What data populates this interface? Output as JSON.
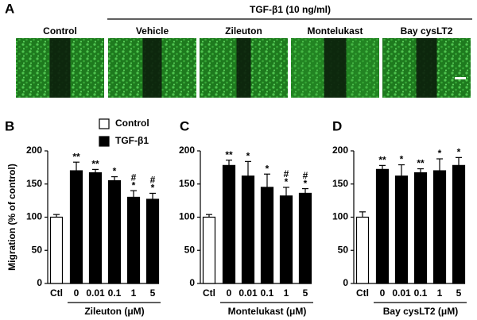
{
  "panel_a": {
    "panel": "A",
    "treatment": "TGF-β1 (10 ng/ml)",
    "images": [
      "Control",
      "Vehicle",
      "Zileuton",
      "Montelukast",
      "Bay cysLT2"
    ]
  },
  "chart_data": [
    {
      "type": "bar",
      "panel": "B",
      "ylabel": "Migration (% of control)",
      "categories": [
        "Ctl",
        "0",
        "0.01",
        "0.1",
        "1",
        "5"
      ],
      "xlabel": "Zileuton (μM)",
      "values": [
        100,
        170,
        167,
        155,
        130,
        127
      ],
      "errors": [
        4,
        13,
        5,
        6,
        10,
        9
      ],
      "colors": [
        "#ffffff",
        "#000000",
        "#000000",
        "#000000",
        "#000000",
        "#000000"
      ],
      "annotations": [
        null,
        [
          "**"
        ],
        [
          "**"
        ],
        [
          "*"
        ],
        [
          "#",
          "*"
        ],
        [
          "#",
          "*"
        ]
      ],
      "legend": [
        {
          "name": "Control",
          "color": "#ffffff"
        },
        {
          "name": "TGF-β1",
          "color": "#000000"
        }
      ],
      "ylim": [
        0,
        200
      ],
      "yticks": [
        0,
        50,
        100,
        150,
        200
      ]
    },
    {
      "type": "bar",
      "panel": "C",
      "categories": [
        "Ctl",
        "0",
        "0.01",
        "0.1",
        "1",
        "5"
      ],
      "xlabel": "Montelukast (μM)",
      "values": [
        100,
        178,
        162,
        145,
        132,
        136
      ],
      "errors": [
        4,
        8,
        22,
        20,
        13,
        7
      ],
      "colors": [
        "#ffffff",
        "#000000",
        "#000000",
        "#000000",
        "#000000",
        "#000000"
      ],
      "annotations": [
        null,
        [
          "**"
        ],
        [
          "*"
        ],
        [
          "*"
        ],
        [
          "#",
          "*"
        ],
        [
          "#",
          "*"
        ]
      ],
      "ylim": [
        0,
        200
      ],
      "yticks": [
        0,
        50,
        100,
        150,
        200
      ]
    },
    {
      "type": "bar",
      "panel": "D",
      "categories": [
        "Ctl",
        "0",
        "0.01",
        "0.1",
        "1",
        "5"
      ],
      "xlabel": "Bay cysLT2 (μM)",
      "values": [
        100,
        172,
        162,
        167,
        170,
        178
      ],
      "errors": [
        8,
        6,
        17,
        6,
        18,
        12
      ],
      "colors": [
        "#ffffff",
        "#000000",
        "#000000",
        "#000000",
        "#000000",
        "#000000"
      ],
      "annotations": [
        null,
        [
          "**"
        ],
        [
          "*"
        ],
        [
          "**"
        ],
        [
          "*"
        ],
        [
          "*"
        ]
      ],
      "ylim": [
        0,
        200
      ],
      "yticks": [
        0,
        50,
        100,
        150,
        200
      ]
    }
  ]
}
